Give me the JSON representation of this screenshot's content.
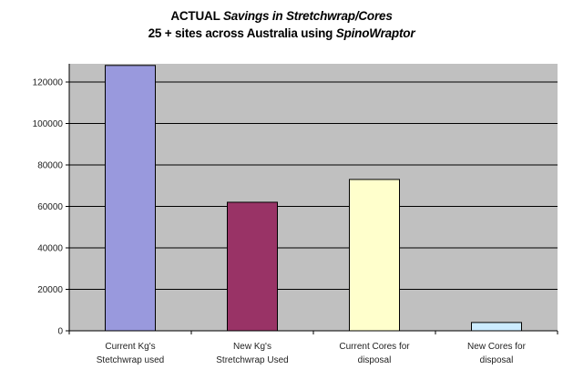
{
  "chart_data": {
    "type": "bar",
    "title_parts": {
      "line1_prefix": "ACTUAL ",
      "line1_italic": "Savings in Stretchwrap/Cores",
      "line2_prefix": "25 + sites across Australia using ",
      "line2_italic": "SpinoWraptor"
    },
    "categories": [
      [
        "Current Kg's",
        "Stetchwrap used"
      ],
      [
        "New Kg's",
        "Stretchwrap Used"
      ],
      [
        "Current Cores for",
        "disposal"
      ],
      [
        "New Cores for",
        "disposal"
      ]
    ],
    "values": [
      128000,
      62000,
      73000,
      4000
    ],
    "colors": [
      "#9999dd",
      "#993366",
      "#ffffcc",
      "#ccecff"
    ],
    "plot_background": "#c0c0c0",
    "gridline_color": "#000000",
    "ylim": [
      0,
      120000
    ],
    "yticks": [
      "0",
      "20000",
      "40000",
      "60000",
      "80000",
      "100000",
      "120000"
    ],
    "grid": true,
    "legend": "none",
    "xlabel": "",
    "ylabel": ""
  }
}
